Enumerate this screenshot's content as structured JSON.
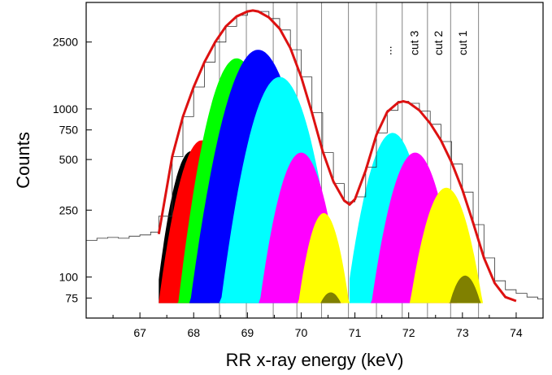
{
  "chart_data": {
    "type": "area",
    "title": "",
    "xlabel": "RR x-ray energy (keV)",
    "ylabel": "Counts",
    "y_scale": "log",
    "xlim": [
      66,
      74.5
    ],
    "ylim": [
      57,
      4300
    ],
    "x_ticks": [
      67,
      68,
      69,
      70,
      71,
      72,
      73,
      74
    ],
    "y_ticks": [
      75,
      100,
      250,
      500,
      750,
      1000,
      2500
    ],
    "grid": false,
    "legend": "none",
    "baseline": 70,
    "vertical_lines": [
      68.48,
      68.98,
      69.48,
      69.92,
      70.38,
      70.88,
      71.4,
      71.88,
      72.35,
      72.78,
      73.3
    ],
    "cut_labels": [
      {
        "text": "cut 1",
        "x": 73.0
      },
      {
        "text": "cut 2",
        "x": 72.55
      },
      {
        "text": "cut 3",
        "x": 72.1
      },
      {
        "text": "...",
        "x": 71.6
      }
    ],
    "series": [
      {
        "color": "#000000",
        "mu": 67.95,
        "sigma": 0.32,
        "peak": 560,
        "start": 67.35,
        "end": 68.3
      },
      {
        "color": "#ff0000",
        "mu": 68.15,
        "sigma": 0.38,
        "peak": 650,
        "start": 67.35,
        "end": 68.6
      },
      {
        "color": "#00ff00",
        "mu": 68.8,
        "sigma": 0.42,
        "peak": 2000,
        "start": 67.4,
        "end": 69.2
      },
      {
        "color": "#0000ff",
        "mu": 69.2,
        "sigma": 0.48,
        "peak": 2250,
        "start": 67.45,
        "end": 69.8
      },
      {
        "color": "#00ffff",
        "mu": 69.6,
        "sigma": 0.44,
        "peak": 1550,
        "start": 67.6,
        "end": 71.1
      },
      {
        "color": "#ff00ff",
        "mu": 70.0,
        "sigma": 0.38,
        "peak": 550,
        "start": 68.3,
        "end": 70.9
      },
      {
        "color": "#ffff00",
        "mu": 70.42,
        "sigma": 0.3,
        "peak": 240,
        "start": 69.3,
        "end": 71.25
      },
      {
        "color": "#00ffff",
        "mu": 71.7,
        "sigma": 0.4,
        "peak": 720,
        "start": 70.9,
        "end": 72.4
      },
      {
        "color": "#ff00ff",
        "mu": 72.12,
        "sigma": 0.4,
        "peak": 550,
        "start": 70.95,
        "end": 72.9
      },
      {
        "color": "#ffff00",
        "mu": 72.7,
        "sigma": 0.38,
        "peak": 340,
        "start": 71.4,
        "end": 74.0
      },
      {
        "color": "#808000",
        "mu": 73.05,
        "sigma": 0.33,
        "peak": 102,
        "start": 71.9,
        "end": 74.0
      },
      {
        "color": "#808000",
        "mu": 70.55,
        "sigma": 0.35,
        "peak": 81,
        "start": 69.6,
        "end": 71.2
      }
    ],
    "fit": {
      "color": "#dd1111",
      "points": [
        [
          67.35,
          180
        ],
        [
          67.6,
          520
        ],
        [
          67.8,
          900
        ],
        [
          68.0,
          1350
        ],
        [
          68.2,
          1900
        ],
        [
          68.4,
          2500
        ],
        [
          68.6,
          3100
        ],
        [
          68.8,
          3550
        ],
        [
          69.0,
          3800
        ],
        [
          69.1,
          3850
        ],
        [
          69.2,
          3800
        ],
        [
          69.4,
          3500
        ],
        [
          69.6,
          3000
        ],
        [
          69.8,
          2300
        ],
        [
          70.0,
          1550
        ],
        [
          70.2,
          950
        ],
        [
          70.4,
          560
        ],
        [
          70.6,
          370
        ],
        [
          70.8,
          285
        ],
        [
          70.9,
          270
        ],
        [
          71.0,
          290
        ],
        [
          71.2,
          430
        ],
        [
          71.4,
          700
        ],
        [
          71.6,
          960
        ],
        [
          71.8,
          1090
        ],
        [
          71.9,
          1110
        ],
        [
          72.0,
          1090
        ],
        [
          72.2,
          980
        ],
        [
          72.4,
          820
        ],
        [
          72.6,
          650
        ],
        [
          72.8,
          480
        ],
        [
          73.0,
          330
        ],
        [
          73.2,
          210
        ],
        [
          73.4,
          130
        ],
        [
          73.6,
          92
        ],
        [
          73.8,
          76
        ],
        [
          74.0,
          72
        ]
      ]
    },
    "data_histogram": [
      [
        66.0,
        165
      ],
      [
        66.2,
        170
      ],
      [
        66.4,
        172
      ],
      [
        66.6,
        170
      ],
      [
        66.8,
        175
      ],
      [
        67.0,
        178
      ],
      [
        67.2,
        185
      ],
      [
        67.35,
        230
      ],
      [
        67.6,
        520
      ],
      [
        67.8,
        900
      ],
      [
        68.0,
        1350
      ],
      [
        68.2,
        1900
      ],
      [
        68.4,
        2500
      ],
      [
        68.6,
        3100
      ],
      [
        68.8,
        3600
      ],
      [
        69.0,
        3850
      ],
      [
        69.2,
        3800
      ],
      [
        69.4,
        3450
      ],
      [
        69.6,
        2950
      ],
      [
        69.8,
        2250
      ],
      [
        70.0,
        1550
      ],
      [
        70.2,
        950
      ],
      [
        70.4,
        550
      ],
      [
        70.6,
        360
      ],
      [
        70.8,
        280
      ],
      [
        71.0,
        300
      ],
      [
        71.2,
        450
      ],
      [
        71.4,
        720
      ],
      [
        71.6,
        980
      ],
      [
        71.8,
        1110
      ],
      [
        72.0,
        1080
      ],
      [
        72.2,
        970
      ],
      [
        72.4,
        810
      ],
      [
        72.6,
        640
      ],
      [
        72.8,
        470
      ],
      [
        73.0,
        320
      ],
      [
        73.2,
        205
      ],
      [
        73.4,
        130
      ],
      [
        73.6,
        95
      ],
      [
        73.8,
        84
      ],
      [
        74.0,
        80
      ],
      [
        74.2,
        76
      ],
      [
        74.4,
        74
      ]
    ]
  }
}
